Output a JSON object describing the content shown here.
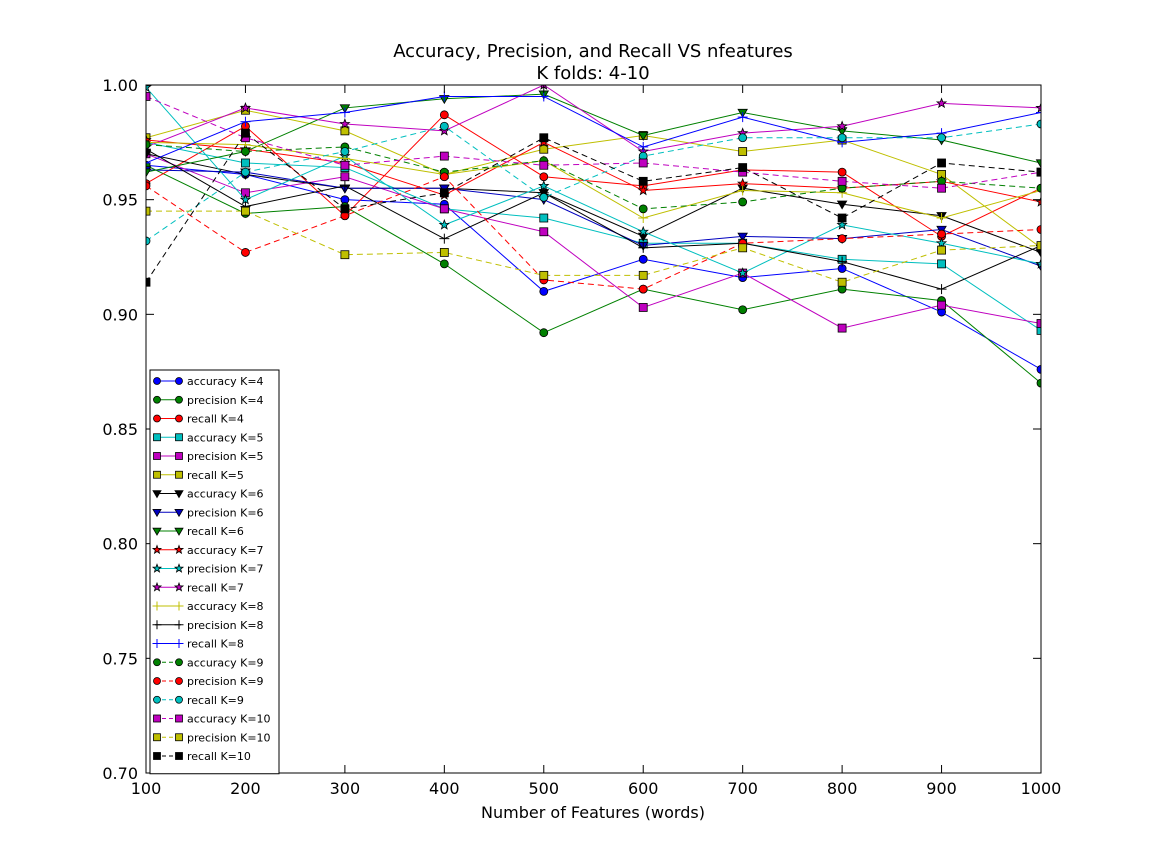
{
  "chart_data": {
    "type": "line",
    "title": "Accuracy, Precision, and Recall VS nfeatures",
    "subtitle": "K folds: 4-10",
    "xlabel": "Number of Features (words)",
    "ylabel": "",
    "x": [
      100,
      200,
      300,
      400,
      500,
      600,
      700,
      800,
      900,
      1000
    ],
    "xlim": [
      100,
      1000
    ],
    "ylim": [
      0.7,
      1.0
    ],
    "xticks": [
      100,
      200,
      300,
      400,
      500,
      600,
      700,
      800,
      900,
      1000
    ],
    "yticks": [
      0.7,
      0.75,
      0.8,
      0.85,
      0.9,
      0.95,
      1.0
    ],
    "ytick_labels": [
      "0.70",
      "0.75",
      "0.80",
      "0.85",
      "0.90",
      "0.95",
      "1.00"
    ],
    "grid": false,
    "legend_position": "lower-left",
    "series": [
      {
        "name": "accuracy K=4",
        "color": "#0000ff",
        "dash": "solid",
        "marker": "circle",
        "values": [
          0.965,
          0.961,
          0.95,
          0.948,
          0.91,
          0.924,
          0.916,
          0.92,
          0.901,
          0.876
        ]
      },
      {
        "name": "precision K=4",
        "color": "#008000",
        "dash": "solid",
        "marker": "circle",
        "values": [
          0.965,
          0.944,
          0.947,
          0.922,
          0.892,
          0.911,
          0.902,
          0.911,
          0.906,
          0.87
        ]
      },
      {
        "name": "recall K=4",
        "color": "#ff0000",
        "dash": "solid",
        "marker": "circle",
        "values": [
          0.957,
          0.982,
          0.943,
          0.987,
          0.96,
          0.956,
          0.963,
          0.962,
          0.934,
          0.955
        ]
      },
      {
        "name": "accuracy K=5",
        "color": "#00bfbf",
        "dash": "solid",
        "marker": "square",
        "values": [
          0.975,
          0.966,
          0.964,
          0.946,
          0.942,
          0.931,
          0.931,
          0.924,
          0.922,
          0.893
        ]
      },
      {
        "name": "precision K=5",
        "color": "#bf00bf",
        "dash": "solid",
        "marker": "square",
        "values": [
          0.97,
          0.953,
          0.96,
          0.946,
          0.936,
          0.903,
          0.918,
          0.894,
          0.904,
          0.896
        ]
      },
      {
        "name": "recall K=5",
        "color": "#bfbf00",
        "dash": "solid",
        "marker": "square",
        "values": [
          0.977,
          0.989,
          0.98,
          0.961,
          0.972,
          0.978,
          0.971,
          0.976,
          0.961,
          0.929
        ]
      },
      {
        "name": "accuracy K=6",
        "color": "#000000",
        "dash": "solid",
        "marker": "triangle",
        "values": [
          0.97,
          0.961,
          0.955,
          0.955,
          0.953,
          0.934,
          0.955,
          0.948,
          0.943,
          0.927
        ]
      },
      {
        "name": "precision K=6",
        "color": "#0000bf",
        "dash": "solid",
        "marker": "triangle",
        "values": [
          0.963,
          0.962,
          0.955,
          0.955,
          0.95,
          0.93,
          0.934,
          0.933,
          0.937,
          0.921
        ]
      },
      {
        "name": "recall K=6",
        "color": "#008000",
        "dash": "solid",
        "marker": "triangle",
        "values": [
          0.962,
          0.971,
          0.99,
          0.994,
          0.996,
          0.978,
          0.988,
          0.98,
          0.976,
          0.966
        ]
      },
      {
        "name": "accuracy K=7",
        "color": "#ff0000",
        "dash": "solid",
        "marker": "star",
        "values": [
          0.976,
          0.972,
          0.966,
          0.952,
          0.975,
          0.954,
          0.957,
          0.955,
          0.958,
          0.949
        ]
      },
      {
        "name": "precision K=7",
        "color": "#00bfbf",
        "dash": "solid",
        "marker": "star",
        "values": [
          0.999,
          0.95,
          0.969,
          0.939,
          0.956,
          0.936,
          0.918,
          0.939,
          0.931,
          0.922
        ]
      },
      {
        "name": "recall K=7",
        "color": "#bf00bf",
        "dash": "solid",
        "marker": "star",
        "values": [
          0.973,
          0.99,
          0.983,
          0.98,
          1.0,
          0.971,
          0.979,
          0.982,
          0.992,
          0.99
        ]
      },
      {
        "name": "accuracy K=8",
        "color": "#bfbf00",
        "dash": "solid",
        "marker": "plus",
        "values": [
          0.975,
          0.974,
          0.968,
          0.961,
          0.967,
          0.942,
          0.954,
          0.953,
          0.942,
          0.954
        ]
      },
      {
        "name": "precision K=8",
        "color": "#000000",
        "dash": "solid",
        "marker": "plus",
        "values": [
          0.972,
          0.947,
          0.956,
          0.933,
          0.953,
          0.929,
          0.931,
          0.923,
          0.911,
          0.93
        ]
      },
      {
        "name": "recall K=8",
        "color": "#0000ff",
        "dash": "solid",
        "marker": "plus",
        "values": [
          0.966,
          0.984,
          0.988,
          0.995,
          0.995,
          0.973,
          0.986,
          0.975,
          0.979,
          0.988
        ]
      },
      {
        "name": "accuracy K=9",
        "color": "#008000",
        "dash": "dashed",
        "marker": "circle",
        "values": [
          0.974,
          0.971,
          0.973,
          0.962,
          0.967,
          0.946,
          0.949,
          0.955,
          0.958,
          0.955
        ]
      },
      {
        "name": "precision K=9",
        "color": "#ff0000",
        "dash": "dashed",
        "marker": "circle",
        "values": [
          0.956,
          0.927,
          0.943,
          0.96,
          0.915,
          0.911,
          0.931,
          0.933,
          0.935,
          0.937
        ]
      },
      {
        "name": "recall K=9",
        "color": "#00bfbf",
        "dash": "dashed",
        "marker": "circle",
        "values": [
          0.932,
          0.962,
          0.971,
          0.982,
          0.951,
          0.969,
          0.977,
          0.977,
          0.977,
          0.983
        ]
      },
      {
        "name": "accuracy K=10",
        "color": "#bf00bf",
        "dash": "dashed",
        "marker": "square",
        "values": [
          0.995,
          0.977,
          0.965,
          0.969,
          0.965,
          0.966,
          0.962,
          0.958,
          0.955,
          0.962
        ]
      },
      {
        "name": "precision K=10",
        "color": "#bfbf00",
        "dash": "dashed",
        "marker": "square",
        "values": [
          0.945,
          0.945,
          0.926,
          0.927,
          0.917,
          0.917,
          0.929,
          0.914,
          0.928,
          0.93
        ]
      },
      {
        "name": "recall K=10",
        "color": "#000000",
        "dash": "dashed",
        "marker": "square",
        "values": [
          0.914,
          0.979,
          0.946,
          0.953,
          0.977,
          0.958,
          0.964,
          0.942,
          0.966,
          0.962
        ]
      }
    ]
  }
}
